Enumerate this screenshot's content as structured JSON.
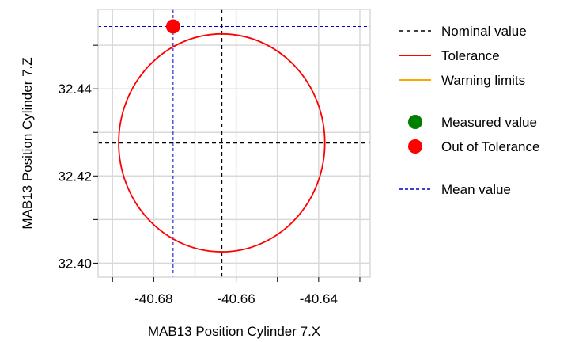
{
  "chart_data": {
    "type": "scatter",
    "xlabel": "MAB13 Position Cylinder 7.X",
    "ylabel": "MAB13 Position Cylinder 7.Z",
    "xlim": [
      -40.6935,
      -40.6275
    ],
    "ylim": [
      32.3968,
      32.4582
    ],
    "x_ticks": [
      -40.68,
      -40.66,
      -40.64
    ],
    "x_tick_labels": [
      "-40.68",
      "-40.66",
      "-40.64"
    ],
    "x_minor_ticks": [
      -40.69,
      -40.67,
      -40.65,
      -40.63
    ],
    "y_ticks": [
      32.4,
      32.42,
      32.44
    ],
    "y_tick_labels": [
      "32.40",
      "32.42",
      "32.44"
    ],
    "y_minor_ticks": [
      32.41,
      32.43,
      32.45
    ],
    "grid": true,
    "nominal": {
      "x": -40.6635,
      "y": 32.4276
    },
    "tolerance_radius": 0.025,
    "mean": {
      "x": -40.6753,
      "y": 32.4543
    },
    "points": [
      {
        "x": -40.6753,
        "y": 32.4543,
        "status": "Out of Tolerance"
      }
    ],
    "legend_position": "right",
    "legend": [
      {
        "label": "Nominal value",
        "kind": "line",
        "color": "#000000",
        "dash": "5,4"
      },
      {
        "label": "Tolerance",
        "kind": "line",
        "color": "#ff0000",
        "dash": ""
      },
      {
        "label": "Warning limits",
        "kind": "line",
        "color": "#ffa500",
        "dash": ""
      },
      {
        "label": "Measured value",
        "kind": "dot",
        "color": "#008000"
      },
      {
        "label": "Out of Tolerance",
        "kind": "dot",
        "color": "#ff0000"
      },
      {
        "label": "Mean value",
        "kind": "line",
        "color": "#0000cc",
        "dash": "4,3"
      }
    ],
    "colors": {
      "nominal": "#000000",
      "tolerance": "#ff0000",
      "mean": "#0000cc",
      "grid": "#d9d9d9",
      "out_of_tolerance": "#ff0000",
      "measured": "#008000"
    }
  }
}
